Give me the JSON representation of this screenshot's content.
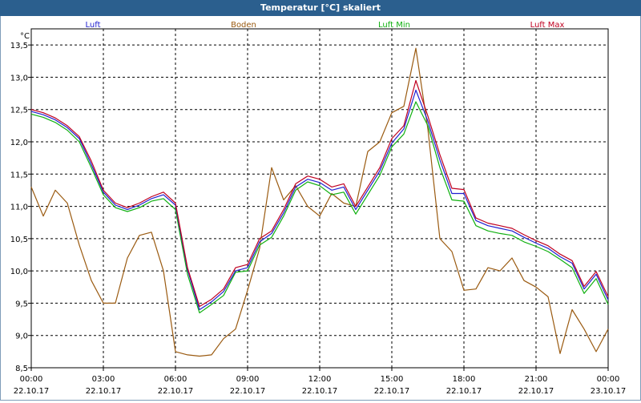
{
  "window": {
    "title": "Temperatur [°C] skaliert"
  },
  "colors": {
    "Luft": "#2020d0",
    "Boden": "#9a5a10",
    "Luft Min": "#10b010",
    "Luft Max": "#c00020",
    "titlebar": "#2b5f8e",
    "grid": "#000000"
  },
  "chart_data": {
    "type": "line",
    "title": "Temperatur [°C] skaliert",
    "ylabel": "°C",
    "xlabel": "",
    "ylim": [
      8.5,
      13.75
    ],
    "xlim": [
      "22.10.17 00:00",
      "23.10.17 00:00"
    ],
    "grid": true,
    "legend": "top",
    "yticks": [
      "8,5",
      "9,0",
      "9,5",
      "10,0",
      "10,5",
      "11,0",
      "11,5",
      "12,0",
      "12,5",
      "13,0",
      "13,5"
    ],
    "xticks": [
      {
        "time": "00:00",
        "date": "22.10.17"
      },
      {
        "time": "03:00",
        "date": "22.10.17"
      },
      {
        "time": "06:00",
        "date": "22.10.17"
      },
      {
        "time": "09:00",
        "date": "22.10.17"
      },
      {
        "time": "12:00",
        "date": "22.10.17"
      },
      {
        "time": "15:00",
        "date": "22.10.17"
      },
      {
        "time": "18:00",
        "date": "22.10.17"
      },
      {
        "time": "21:00",
        "date": "22.10.17"
      },
      {
        "time": "00:00",
        "date": "23.10.17"
      }
    ],
    "x_hours": [
      0,
      0.5,
      1,
      1.5,
      2,
      2.5,
      3,
      3.5,
      4,
      4.5,
      5,
      5.5,
      6,
      6.5,
      7,
      7.5,
      8,
      8.5,
      9,
      9.5,
      10,
      10.5,
      11,
      11.5,
      12,
      12.5,
      13,
      13.5,
      14,
      14.5,
      15,
      15.5,
      16,
      16.5,
      17,
      17.5,
      18,
      18.5,
      19,
      19.5,
      20,
      20.5,
      21,
      21.5,
      22,
      22.5,
      23,
      23.5,
      24
    ],
    "series": [
      {
        "name": "Luft",
        "values": [
          12.47,
          12.42,
          12.34,
          12.22,
          12.05,
          11.65,
          11.22,
          11.02,
          10.95,
          11.02,
          11.12,
          11.18,
          11.02,
          10.02,
          9.4,
          9.52,
          9.68,
          10.0,
          10.05,
          10.45,
          10.58,
          10.9,
          11.3,
          11.42,
          11.37,
          11.25,
          11.3,
          10.95,
          11.25,
          11.55,
          11.98,
          12.2,
          12.8,
          12.32,
          11.72,
          11.2,
          11.2,
          10.78,
          10.7,
          10.66,
          10.62,
          10.52,
          10.43,
          10.35,
          10.22,
          10.12,
          9.72,
          9.95,
          9.55
        ]
      },
      {
        "name": "Boden",
        "values": [
          11.3,
          10.85,
          11.25,
          11.05,
          10.4,
          9.85,
          9.5,
          9.5,
          10.2,
          10.55,
          10.6,
          10.0,
          8.75,
          8.7,
          8.68,
          8.7,
          8.95,
          9.1,
          9.7,
          10.35,
          11.6,
          11.1,
          11.32,
          11.0,
          10.85,
          11.2,
          11.05,
          11.0,
          11.85,
          12.0,
          12.45,
          12.55,
          13.45,
          12.2,
          10.5,
          10.3,
          9.7,
          9.72,
          10.05,
          10.0,
          10.2,
          9.85,
          9.75,
          9.6,
          8.72,
          9.4,
          9.1,
          8.75,
          9.1
        ]
      },
      {
        "name": "Luft Min",
        "values": [
          12.43,
          12.38,
          12.3,
          12.18,
          12.0,
          11.6,
          11.18,
          10.98,
          10.92,
          10.98,
          11.08,
          11.12,
          10.95,
          9.95,
          9.35,
          9.48,
          9.62,
          9.98,
          10.0,
          10.4,
          10.52,
          10.85,
          11.25,
          11.38,
          11.32,
          11.18,
          11.22,
          10.88,
          11.18,
          11.48,
          11.92,
          12.12,
          12.62,
          12.25,
          11.6,
          11.1,
          11.08,
          10.7,
          10.62,
          10.58,
          10.55,
          10.45,
          10.38,
          10.3,
          10.18,
          10.05,
          9.65,
          9.88,
          9.48
        ]
      },
      {
        "name": "Luft Max",
        "values": [
          12.5,
          12.45,
          12.37,
          12.25,
          12.08,
          11.7,
          11.25,
          11.05,
          10.98,
          11.05,
          11.15,
          11.22,
          11.05,
          10.05,
          9.45,
          9.56,
          9.72,
          10.05,
          10.1,
          10.5,
          10.62,
          10.95,
          11.35,
          11.47,
          11.42,
          11.3,
          11.35,
          11.0,
          11.3,
          11.6,
          12.05,
          12.25,
          12.95,
          12.4,
          11.8,
          11.28,
          11.26,
          10.82,
          10.74,
          10.7,
          10.66,
          10.56,
          10.47,
          10.39,
          10.26,
          10.16,
          9.76,
          9.99,
          9.6
        ]
      }
    ]
  }
}
